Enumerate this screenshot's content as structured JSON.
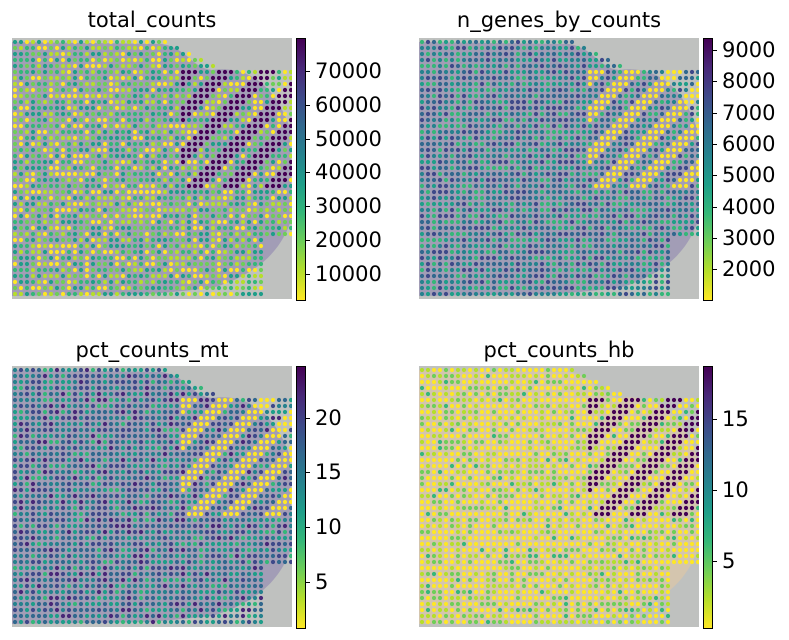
{
  "colors": {
    "background": "#ffffff",
    "tissue_bg": "#bfc1bf",
    "viridis_r": [
      "#fde725",
      "#b5de2b",
      "#6ece58",
      "#35b779",
      "#1f9e89",
      "#26828e",
      "#31688e",
      "#3e4989",
      "#482878",
      "#440154"
    ]
  },
  "panels": [
    {
      "title": "total_counts",
      "ticks": [
        {
          "label": "10000",
          "value": 10000
        },
        {
          "label": "20000",
          "value": 20000
        },
        {
          "label": "30000",
          "value": 30000
        },
        {
          "label": "40000",
          "value": 40000
        },
        {
          "label": "50000",
          "value": 50000
        },
        {
          "label": "60000",
          "value": 60000
        },
        {
          "label": "70000",
          "value": 70000
        }
      ],
      "range": [
        2000,
        80000
      ]
    },
    {
      "title": "n_genes_by_counts",
      "ticks": [
        {
          "label": "2000",
          "value": 2000
        },
        {
          "label": "3000",
          "value": 3000
        },
        {
          "label": "4000",
          "value": 4000
        },
        {
          "label": "5000",
          "value": 5000
        },
        {
          "label": "6000",
          "value": 6000
        },
        {
          "label": "7000",
          "value": 7000
        },
        {
          "label": "8000",
          "value": 8000
        },
        {
          "label": "9000",
          "value": 9000
        }
      ],
      "range": [
        1000,
        9400
      ]
    },
    {
      "title": "pct_counts_mt",
      "ticks": [
        {
          "label": "5",
          "value": 5
        },
        {
          "label": "10",
          "value": 10
        },
        {
          "label": "15",
          "value": 15
        },
        {
          "label": "20",
          "value": 20
        }
      ],
      "range": [
        0.7,
        24.8
      ]
    },
    {
      "title": "pct_counts_hb",
      "ticks": [
        {
          "label": "5",
          "value": 5
        },
        {
          "label": "10",
          "value": 10
        },
        {
          "label": "15",
          "value": 15
        }
      ],
      "range": [
        0.2,
        18.8
      ]
    }
  ]
}
